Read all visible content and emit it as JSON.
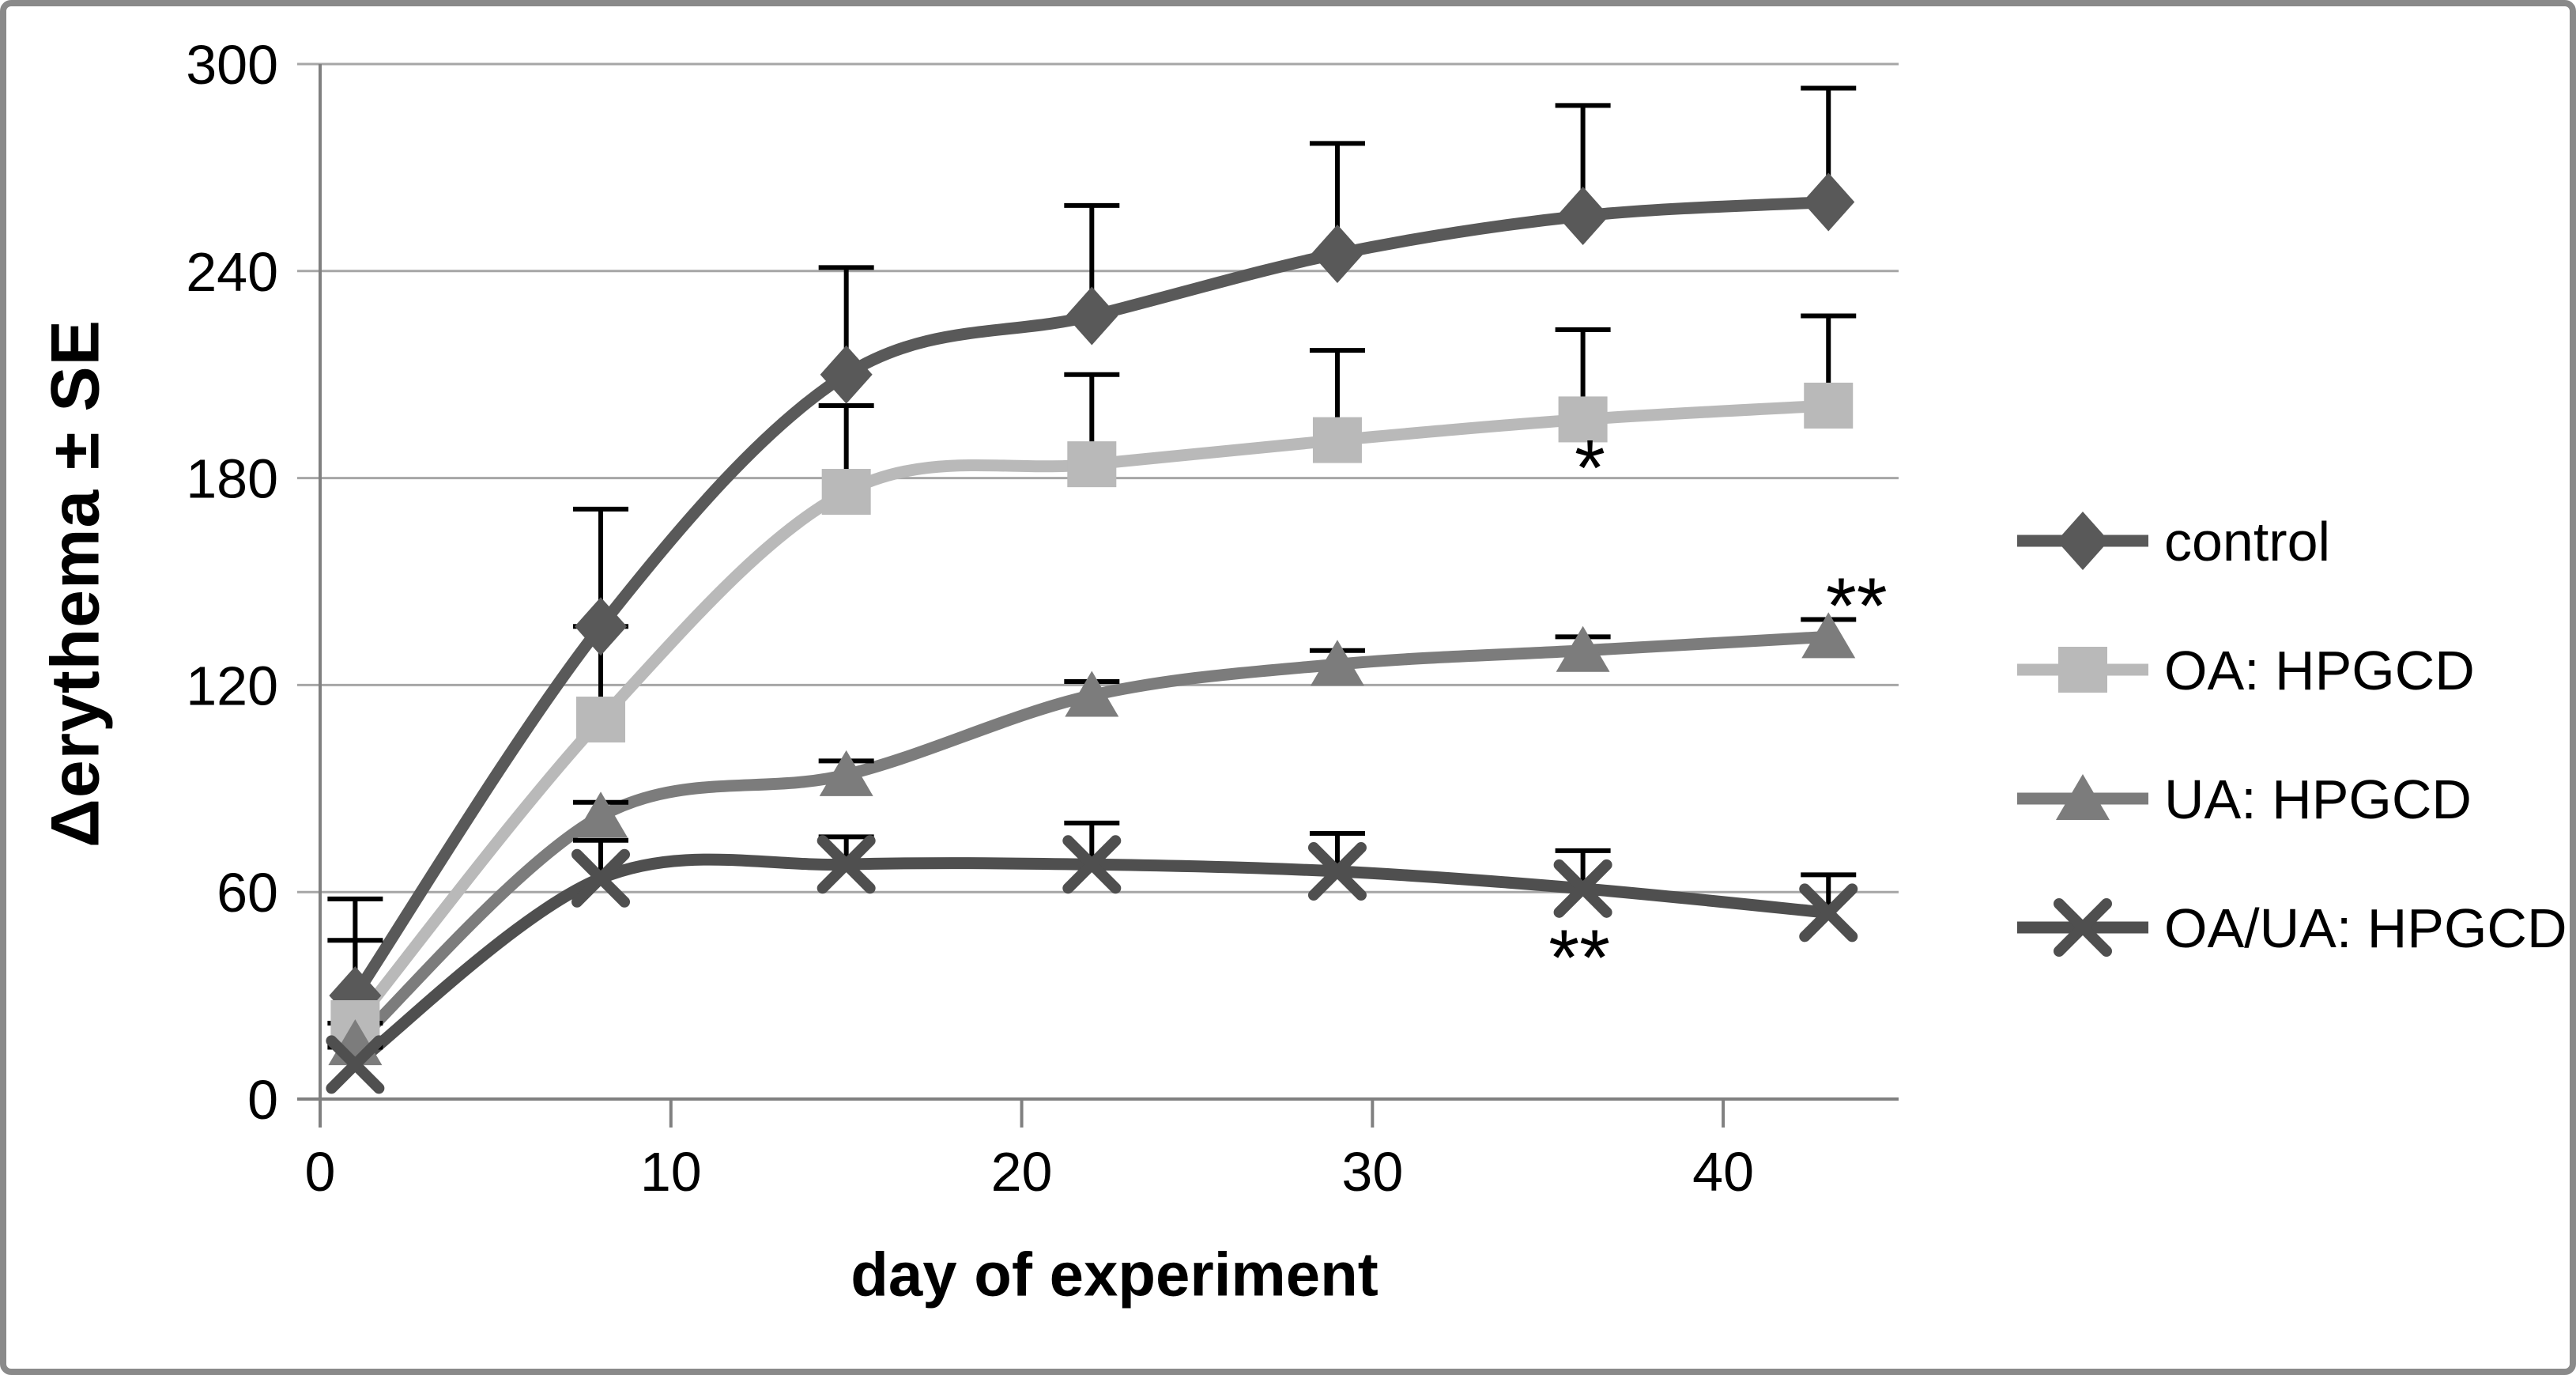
{
  "page": {
    "background": "#ffffff",
    "frame_border_color": "#8a8a8a"
  },
  "chart_data": {
    "type": "line",
    "title": "",
    "xlabel": "day of experiment",
    "ylabel": "Δerythema ± SE",
    "x": [
      1,
      8,
      15,
      22,
      29,
      36,
      43
    ],
    "xlim": [
      0,
      45
    ],
    "ylim": [
      0,
      300
    ],
    "x_ticks": [
      0,
      10,
      20,
      30,
      40
    ],
    "y_ticks": [
      0,
      60,
      120,
      180,
      240,
      300
    ],
    "grid": "horizontal-only",
    "legend_position": "right-outside",
    "error_bars": {
      "direction": "up-only",
      "color": "#000000",
      "cap": true
    },
    "style": {
      "grid_color": "#a6a6a6",
      "axis_color": "#808080",
      "tick_label_color": "#000000",
      "annotation_color": "#000000"
    },
    "series": [
      {
        "name": "control",
        "marker": "diamond",
        "color": "#595959",
        "values": [
          30,
          137,
          210,
          227,
          245,
          256,
          260
        ],
        "se_upper": [
          28,
          34,
          31,
          32,
          32,
          32,
          33
        ]
      },
      {
        "name": "OA: HPGCD",
        "marker": "square",
        "color": "#b9b9b9",
        "values": [
          22,
          110,
          176,
          184,
          191,
          197,
          201
        ],
        "se_upper": [
          24,
          27,
          25,
          26,
          26,
          26,
          26
        ]
      },
      {
        "name": "UA: HPGCD",
        "marker": "triangle",
        "color": "#7c7c7c",
        "values": [
          16,
          82,
          94,
          117,
          126,
          130,
          134
        ],
        "se_upper": [
          6,
          4,
          4,
          4,
          4,
          4,
          5
        ]
      },
      {
        "name": "OA/UA: HPGCD",
        "marker": "x-cross",
        "color": "#4f4f4f",
        "values": [
          10,
          64,
          68,
          68,
          66,
          61,
          54
        ],
        "se_upper": [
          5,
          11,
          8,
          12,
          11,
          11,
          11
        ]
      }
    ],
    "annotations": [
      {
        "text": "*",
        "day": 36.2,
        "value": 187
      },
      {
        "text": "**",
        "day": 43.8,
        "value": 147
      },
      {
        "text": "**",
        "day": 35.9,
        "value": 45
      }
    ]
  }
}
